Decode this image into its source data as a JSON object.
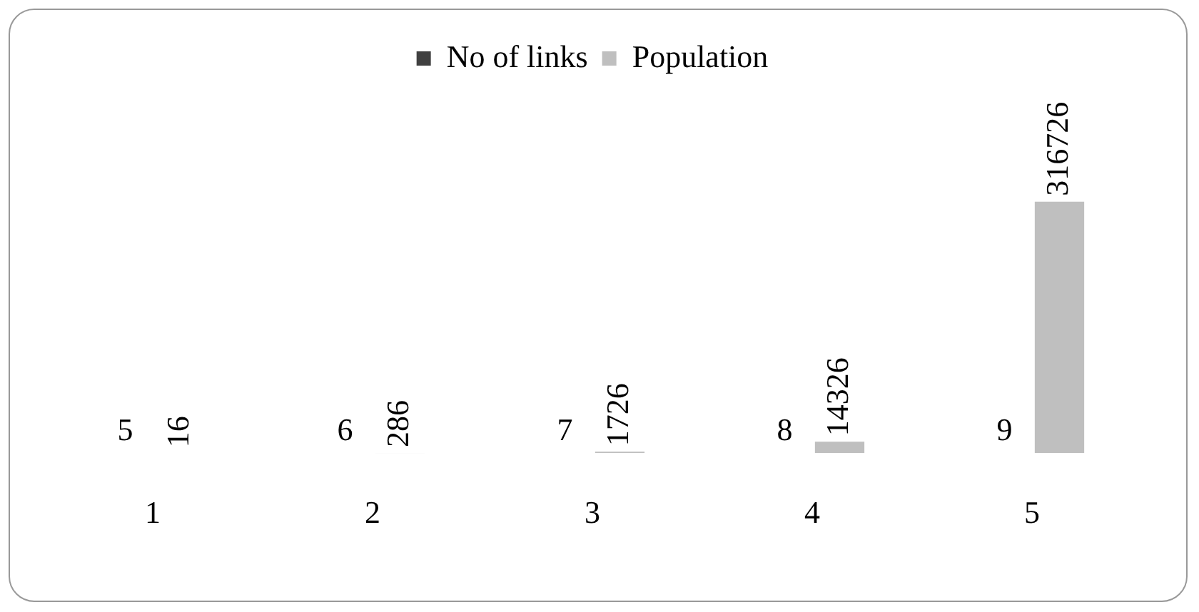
{
  "chart_data": {
    "type": "bar",
    "categories": [
      "1",
      "2",
      "3",
      "4",
      "5"
    ],
    "series": [
      {
        "name": "No of links",
        "color": "#404040",
        "values": [
          5,
          6,
          7,
          8,
          9
        ]
      },
      {
        "name": "Population",
        "color": "#bfbfbf",
        "values": [
          16,
          286,
          1726,
          14326,
          316726
        ]
      }
    ],
    "data_labels": true,
    "legend": "top",
    "tick_labels": "x",
    "grid": false
  }
}
